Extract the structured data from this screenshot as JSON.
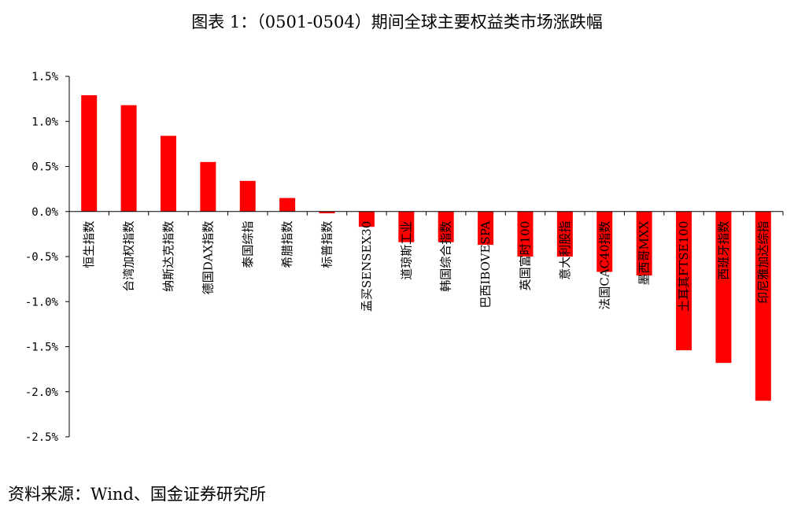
{
  "chart_data": {
    "type": "bar",
    "title": "图表 1：（0501-0504）期间全球主要权益类市场涨跌幅",
    "xlabel": "",
    "ylabel": "",
    "ylim": [
      -2.5,
      1.5
    ],
    "yticks": [
      "1.5%",
      "1.0%",
      "0.5%",
      "0.0%",
      "-0.5%",
      "-1.0%",
      "-1.5%",
      "-2.0%",
      "-2.5%"
    ],
    "grid": false,
    "legend": "none",
    "bar_color": "#ff0000",
    "categories": [
      "恒生指数",
      "台湾加权指数",
      "纳斯达克指数",
      "德国DAX指数",
      "泰国综指",
      "希腊指数",
      "标普指数",
      "孟买SENSEX30",
      "道琼斯工业",
      "韩国综合指数",
      "巴西IBOVESPA",
      "英国富时100",
      "意大利股指",
      "法国CAC40指数",
      "墨西哥MXX",
      "土耳其FTSE100",
      "西班牙指数",
      "印尼雅加达综指"
    ],
    "values": [
      1.29,
      1.18,
      0.84,
      0.55,
      0.34,
      0.15,
      -0.02,
      -0.17,
      -0.34,
      -0.34,
      -0.37,
      -0.5,
      -0.5,
      -0.67,
      -0.71,
      -1.54,
      -1.68,
      -2.1
    ]
  },
  "source": "资料来源：Wind、国金证券研究所"
}
